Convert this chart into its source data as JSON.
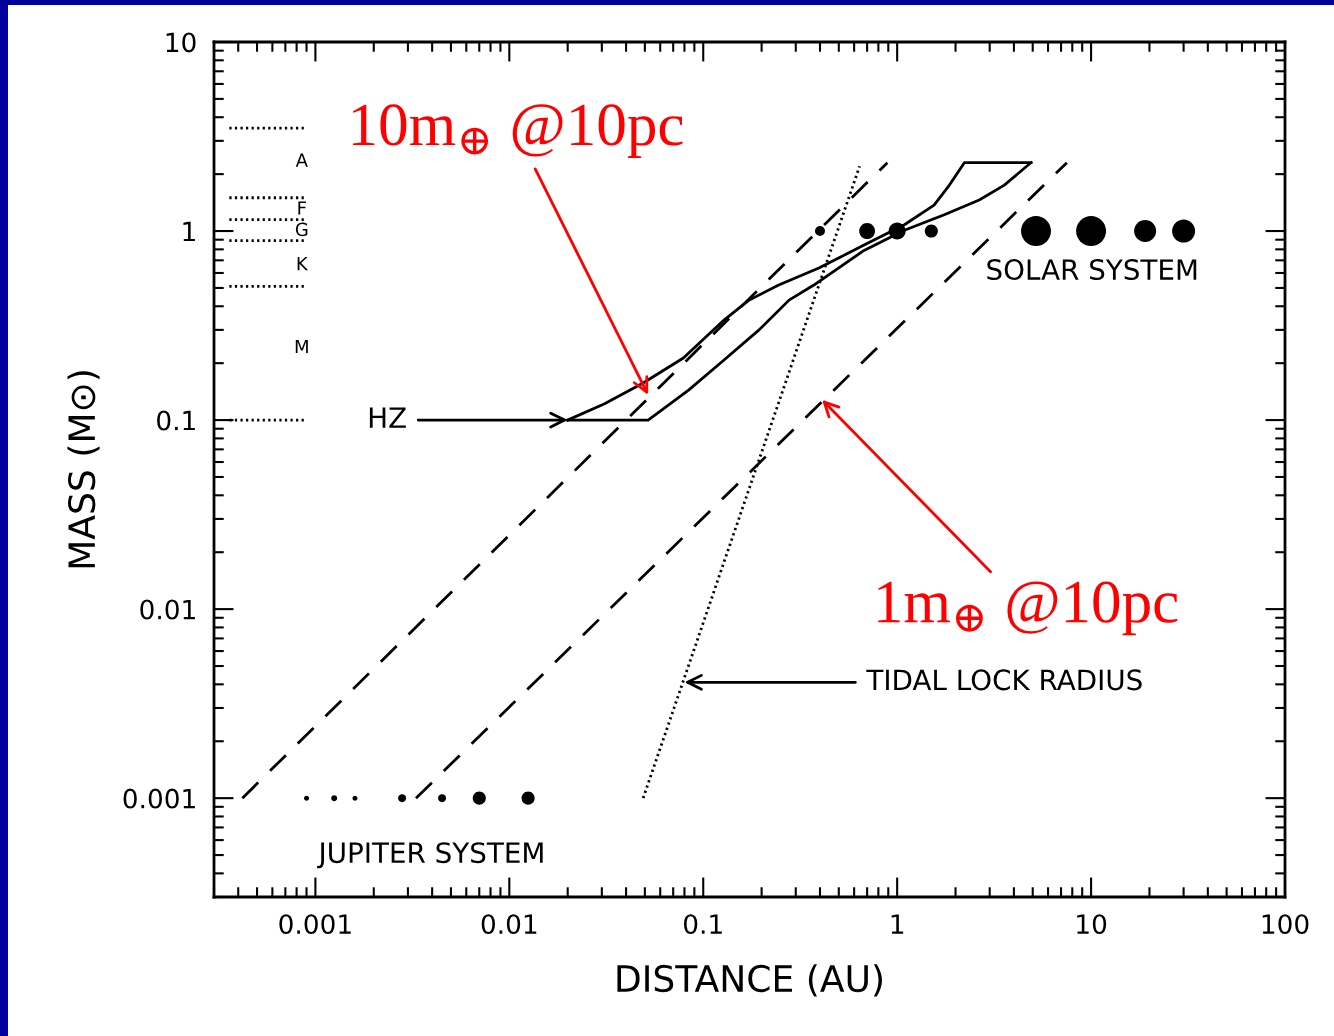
{
  "chart_data": {
    "type": "bubble",
    "xlabel": "DISTANCE (AU)",
    "ylabel": "MASS (M⊙)",
    "log": "xy",
    "grid": false,
    "xlim": [
      0.0003,
      100
    ],
    "ylim": [
      0.0003,
      10
    ],
    "xticks": [
      0.001,
      0.01,
      0.1,
      1,
      10,
      100
    ],
    "yticks": [
      0.001,
      0.01,
      0.1,
      1,
      10
    ],
    "series": [
      {
        "color": "#000000",
        "x": [
          0.4,
          0.7,
          1,
          1.5,
          5.2,
          10,
          19,
          30
        ],
        "values": [
          1,
          1,
          1,
          1,
          1,
          1,
          1,
          1
        ],
        "sizes": [
          0.11,
          0.28,
          0.32,
          0.19,
          1,
          1,
          0.54,
          0.59
        ]
      },
      {
        "color": "#000000",
        "x": [
          0.0009,
          0.00125,
          0.0016,
          0.0028,
          0.0045,
          0.007,
          0.0125
        ],
        "values": [
          0.001,
          0.001,
          0.001,
          0.001,
          0.001,
          0.001,
          0.001
        ],
        "sizes": [
          0.028,
          0.04,
          0.028,
          0.071,
          0.071,
          0.19,
          0.19
        ]
      },
      {
        "type": "line",
        "color": "#000000",
        "line_style": "dashed",
        "marker": "none",
        "x": [
          0.00042,
          0.89
        ],
        "values": [
          0.001,
          2.3
        ]
      },
      {
        "type": "line",
        "color": "#000000",
        "line_style": "dashed",
        "marker": "none",
        "x": [
          0.0033,
          7.5
        ],
        "values": [
          0.001,
          2.3
        ]
      },
      {
        "type": "line",
        "color": "#000000",
        "line_style": "dotted",
        "marker": "none",
        "x": [
          0.049,
          0.64
        ],
        "values": [
          0.001,
          2.2
        ]
      },
      {
        "type": "line",
        "color": "#000000",
        "line_style": "solid",
        "marker": "none",
        "x": [
          0.02,
          0.031,
          0.049,
          0.079,
          0.128,
          0.172,
          0.245,
          0.395,
          0.675,
          1.09,
          1.55,
          1.86,
          2.22,
          4.9
        ],
        "values": [
          0.1,
          0.122,
          0.157,
          0.213,
          0.338,
          0.431,
          0.518,
          0.637,
          0.843,
          1.08,
          1.37,
          1.75,
          2.3,
          2.3
        ]
      },
      {
        "type": "line",
        "color": "#000000",
        "line_style": "solid",
        "marker": "none",
        "x": [
          0.02,
          0.052,
          0.084,
          0.128,
          0.194,
          0.277,
          0.372,
          0.675,
          1.09,
          1.75,
          2.65,
          3.57,
          4.9
        ],
        "values": [
          0.1,
          0.1,
          0.144,
          0.208,
          0.3,
          0.431,
          0.518,
          0.79,
          1.01,
          1.22,
          1.46,
          1.75,
          2.3
        ]
      },
      {
        "type": "line",
        "color": "#000000",
        "line_style": "dotted",
        "marker": "none",
        "x": [
          0.00036,
          0.0009
        ],
        "values": [
          3.5,
          3.5
        ]
      },
      {
        "type": "line",
        "color": "#000000",
        "line_style": "dotted",
        "marker": "none",
        "x": [
          0.00036,
          0.0009
        ],
        "values": [
          1.5,
          1.5
        ]
      },
      {
        "type": "line",
        "color": "#000000",
        "line_style": "dotted",
        "marker": "none",
        "x": [
          0.00036,
          0.0009
        ],
        "values": [
          1.15,
          1.15
        ]
      },
      {
        "type": "line",
        "color": "#000000",
        "line_style": "dotted",
        "marker": "none",
        "x": [
          0.00036,
          0.0009
        ],
        "values": [
          0.89,
          0.89
        ]
      },
      {
        "type": "line",
        "color": "#000000",
        "line_style": "dotted",
        "marker": "none",
        "x": [
          0.00036,
          0.0009
        ],
        "values": [
          0.51,
          0.51
        ]
      },
      {
        "type": "line",
        "color": "#000000",
        "line_style": "dotted",
        "marker": "none",
        "x": [
          0.00036,
          0.0009
        ],
        "values": [
          0.1,
          0.1
        ]
      }
    ],
    "annotations": [
      "A",
      "F",
      "G",
      "K",
      "M",
      "SOLAR SYSTEM",
      "JUPITER SYSTEM",
      {
        "text": "HZ",
        "x": 0.02,
        "y": 0.1
      },
      {
        "text": "TIDAL LOCK RADIUS",
        "x": 0.08,
        "y": 0.0041
      },
      {
        "text": "10m$_{⊕}$ @10pc",
        "x": 0.052,
        "y": 0.136
      },
      {
        "text": "1m$_{⊕}$ @10pc",
        "x": 0.41,
        "y": 0.128
      }
    ]
  }
}
